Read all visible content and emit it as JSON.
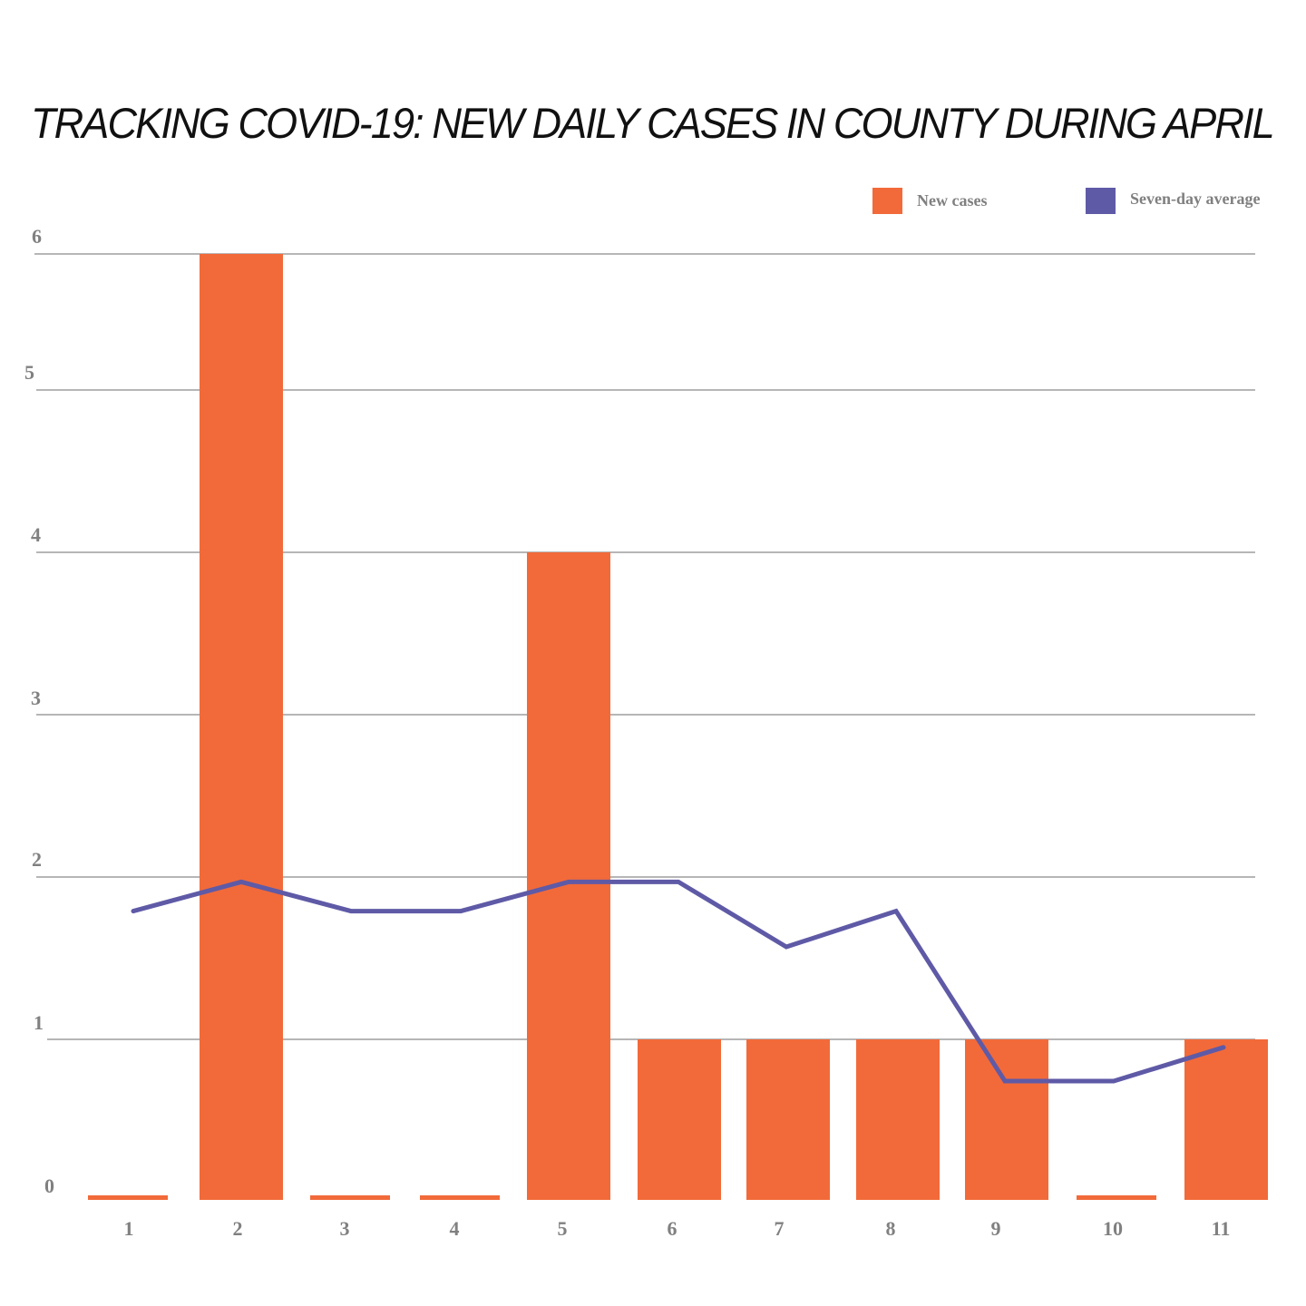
{
  "chart_data": {
    "type": "bar",
    "title": "TRACKING COVID-19: NEW DAILY CASES IN COUNTY DURING APRIL",
    "xlabel": "",
    "ylabel": "",
    "ylim": [
      0,
      6
    ],
    "yticks": [
      0,
      1,
      2,
      3,
      4,
      5,
      6
    ],
    "grid": true,
    "legend_position": "top-right",
    "categories": [
      "1",
      "2",
      "3",
      "4",
      "5",
      "6",
      "7",
      "8",
      "9",
      "10",
      "11"
    ],
    "series": [
      {
        "name": "New cases",
        "type": "bar",
        "color": "#F26A3A",
        "values": [
          0,
          6,
          0,
          0,
          4,
          1,
          1,
          1,
          1,
          0,
          1
        ]
      },
      {
        "name": "Seven-day average",
        "type": "line",
        "color": "#5F5AA6",
        "values": [
          1.79,
          1.97,
          1.79,
          1.79,
          1.97,
          1.97,
          1.57,
          1.79,
          0.74,
          0.74,
          0.95
        ]
      }
    ]
  },
  "legend": {
    "items": [
      {
        "label": "New cases",
        "color": "#F26A3A"
      },
      {
        "label": "Seven-day average",
        "color": "#5F5AA6"
      }
    ]
  }
}
